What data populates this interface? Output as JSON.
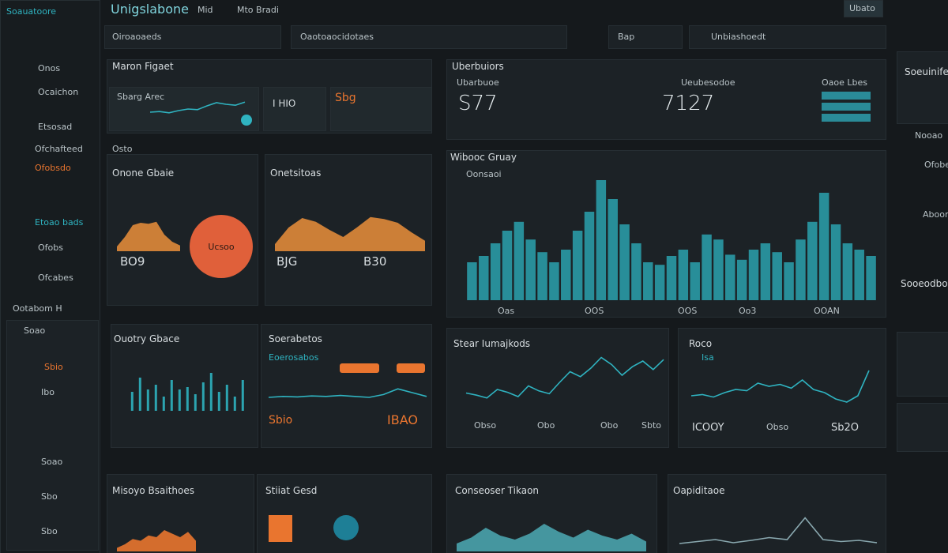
{
  "header": {
    "title": "Unigslabone",
    "nav": [
      "Mid",
      "Mto Bradi"
    ],
    "button": "Ubato",
    "brand_sub": "Soauatoore"
  },
  "search": [
    "Oiroaoaeds",
    "Oaotoaocidotaes",
    "Bap",
    "Unbiashoedt"
  ],
  "sidebar": {
    "items": [
      "Onos",
      "Ocaichon",
      "Etsosad",
      "Ofchafteed",
      "Ofobsdo",
      "Etoao bads",
      "Ofobs",
      "Ofcabes"
    ],
    "section": "Ootabom H",
    "lower": [
      "Soao",
      "Sbio",
      "Ibo",
      "Soao",
      "Sbo",
      "Sbo"
    ]
  },
  "panels": {
    "overview": {
      "title": "Maron Figaet",
      "card1": "Sbarg Arec",
      "card2": "I HIO",
      "card3": "Sbg"
    },
    "summary": {
      "title": "Uberbuiors",
      "big1": "S77",
      "big2": "7127",
      "label1": "Ubarbuoe",
      "label2": "Ueubesodoe",
      "label3": "Oaoe Lbes"
    },
    "left_mid": {
      "tag": "Osto",
      "title1": "Onone Gbaie",
      "title2": "Onetsitoas",
      "circle": "Ucsoo",
      "num1": "BO9",
      "num2": "BJG",
      "num3": "B30"
    },
    "bars": {
      "title": "Wibooc Gruay",
      "legend": "Oonsaoi",
      "axis": [
        "Oas",
        "OOS",
        "OOS",
        "Oo3",
        "OOAN"
      ]
    },
    "quality": {
      "title": "Ouotry Gbace"
    },
    "metrics": {
      "title": "Soerabetos",
      "sub": "Eoerosabos",
      "num1": "Sbio",
      "num2": "IBAO"
    },
    "line1": {
      "title": "Stear Iumajkods",
      "labels": [
        "Obso",
        "Obo",
        "Obo",
        "Sbto"
      ]
    },
    "line2": {
      "title": "Roco",
      "value": "Isa",
      "labels": [
        "ICOOY",
        "Obso",
        "Sb2O"
      ]
    },
    "bottom": [
      "Misoyo Bsaithoes",
      "Stiiat Gesd",
      "Conseoser Tikaon",
      "Oapiditaoe"
    ],
    "right": {
      "title1": "Soeuinifee",
      "title2": "Sooeodboes",
      "items": [
        "Nooao",
        "Ofobe",
        "Aboon"
      ]
    }
  },
  "charts": {
    "mini": {
      "values": [
        40,
        42,
        38,
        45,
        50,
        48,
        60,
        70,
        65,
        62,
        72
      ]
    },
    "area_left": {
      "values": [
        10,
        30,
        55,
        60,
        58,
        62,
        35,
        20,
        12
      ]
    },
    "area_right": {
      "values": [
        15,
        50,
        70,
        62,
        45,
        30,
        50,
        72,
        68,
        60,
        40,
        22
      ]
    },
    "main_bars": {
      "values": [
        30,
        35,
        45,
        55,
        62,
        48,
        38,
        30,
        40,
        55,
        70,
        95,
        80,
        60,
        45,
        30,
        28,
        35,
        40,
        30,
        52,
        48,
        36,
        32,
        40,
        45,
        38,
        30,
        48,
        62,
        85,
        60,
        45,
        40,
        35
      ]
    },
    "quality_bars": {
      "values": [
        40,
        70,
        45,
        55,
        30,
        65,
        45,
        50,
        35,
        60,
        80,
        40,
        55,
        30,
        65
      ]
    },
    "metric_line": {
      "values": [
        20,
        22,
        21,
        23,
        22,
        24,
        22,
        20,
        26,
        38,
        30,
        22
      ]
    },
    "line1": {
      "values": [
        25,
        22,
        18,
        30,
        26,
        20,
        35,
        28,
        24,
        40,
        55,
        48,
        60,
        75,
        65,
        50,
        62,
        70,
        58,
        72
      ]
    },
    "line2": {
      "values": [
        30,
        32,
        28,
        35,
        40,
        38,
        50,
        45,
        48,
        42,
        55,
        40,
        35,
        25,
        20,
        30,
        70
      ]
    },
    "bottom_area1": {
      "values": [
        10,
        20,
        35,
        30,
        45,
        40,
        60,
        50,
        40,
        55,
        30
      ]
    },
    "bottom_area2": {
      "values": [
        20,
        35,
        60,
        40,
        30,
        45,
        70,
        50,
        35,
        55,
        40,
        30,
        45,
        25
      ]
    },
    "bottom_line": {
      "values": [
        20,
        25,
        30,
        22,
        28,
        35,
        30,
        85,
        30,
        25,
        28,
        22
      ]
    }
  }
}
